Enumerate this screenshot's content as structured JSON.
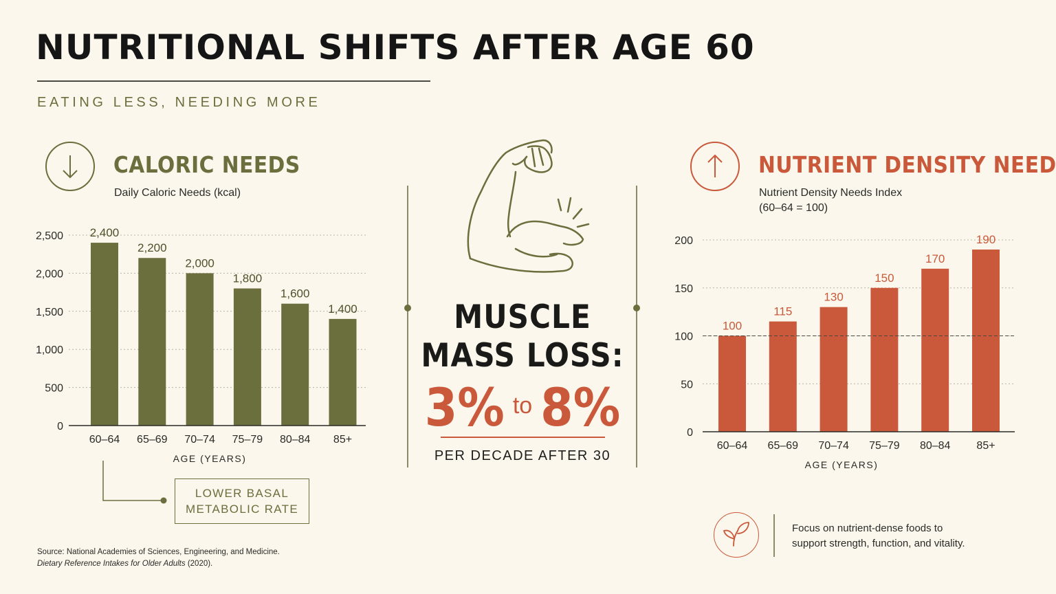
{
  "header": {
    "title": "NUTRITIONAL SHIFTS AFTER AGE 60",
    "subtitle": "EATING LESS, NEEDING MORE"
  },
  "colors": {
    "olive": "#6b6e3d",
    "terracotta": "#c9593a",
    "background": "#fbf7ec"
  },
  "icons": {
    "caloric": "arrow-down-circle-icon",
    "nutrient": "arrow-up-circle-icon",
    "muscle": "flexed-arm-icon",
    "focus": "leaf-circle-icon"
  },
  "caloric": {
    "heading": "CALORIC NEEDS",
    "subtitle": "Daily Caloric Needs (kcal)",
    "callout_line1": "LOWER BASAL",
    "callout_line2": "METABOLIC RATE"
  },
  "nutrient": {
    "heading": "NUTRIENT DENSITY NEEDS",
    "subtitle_line1": "Nutrient Density Needs Index",
    "subtitle_line2": "(60–64 = 100)"
  },
  "muscle": {
    "line1": "MUSCLE",
    "line2": "MASS LOSS:",
    "low": "3%",
    "to": "to",
    "high": "8%",
    "note": "PER DECADE AFTER 30"
  },
  "focus": {
    "line1": "Focus on nutrient-dense foods to",
    "line2": "support strength, function, and vitality."
  },
  "source": {
    "line1": "Source: National Academies of Sciences, Engineering, and Medicine.",
    "line2_italic": "Dietary Reference Intakes for Older Adults",
    "line2_rest": " (2020)."
  },
  "chart_data": [
    {
      "type": "bar",
      "title": "CALORIC NEEDS",
      "subtitle": "Daily Caloric Needs (kcal)",
      "categories": [
        "60–64",
        "65–69",
        "70–74",
        "75–79",
        "80–84",
        "85+"
      ],
      "values": [
        2400,
        2200,
        2000,
        1800,
        1600,
        1400
      ],
      "labels": [
        "2,400",
        "2,200",
        "2,000",
        "1,800",
        "1,600",
        "1,400"
      ],
      "yticks": [
        0,
        500,
        1000,
        1500,
        2000,
        2500
      ],
      "ytick_labels": [
        "0",
        "500",
        "1,000",
        "1,500",
        "2,000",
        "2,500"
      ],
      "xlabel": "AGE (YEARS)",
      "ylabel": "",
      "ylim": [
        0,
        2500
      ],
      "grid": true,
      "color": "#6b6e3d"
    },
    {
      "type": "bar",
      "title": "NUTRIENT DENSITY NEEDS",
      "subtitle": "Nutrient Density Needs Index (60–64 = 100)",
      "categories": [
        "60–64",
        "65–69",
        "70–74",
        "75–79",
        "80–84",
        "85+"
      ],
      "values": [
        100,
        115,
        130,
        150,
        170,
        190
      ],
      "labels": [
        "100",
        "115",
        "130",
        "150",
        "170",
        "190"
      ],
      "yticks": [
        0,
        50,
        100,
        150,
        200
      ],
      "ytick_labels": [
        "0",
        "50",
        "100",
        "150",
        "200"
      ],
      "reference_line": 100,
      "xlabel": "AGE (YEARS)",
      "ylabel": "",
      "ylim": [
        0,
        200
      ],
      "grid": true,
      "color": "#c9593a"
    }
  ]
}
